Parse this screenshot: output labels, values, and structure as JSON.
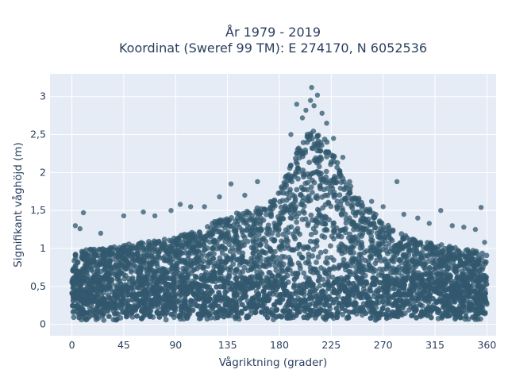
{
  "chart_data": {
    "type": "scatter",
    "title": {
      "line1": "År 1979 - 2019",
      "line2": "Koordinat (Sweref 99 TM): E 274170, N 6052536"
    },
    "xlabel": "Vågriktning (grader)",
    "ylabel": "Signifikant våghöjd (m)",
    "xlim": [
      -19,
      368
    ],
    "ylim": [
      -0.15,
      3.3
    ],
    "xticks": [
      0,
      45,
      90,
      135,
      180,
      225,
      270,
      315,
      360
    ],
    "xtick_labels": [
      "0",
      "45",
      "90",
      "135",
      "180",
      "225",
      "270",
      "315",
      "360"
    ],
    "yticks": [
      0,
      0.5,
      1,
      1.5,
      2,
      2.5,
      3
    ],
    "ytick_labels": [
      "0",
      "0,5",
      "1",
      "1,5",
      "2",
      "2,5",
      "3"
    ],
    "grid": true,
    "marker_color": "#32586e",
    "background_color": "#e5ecf6",
    "upper_envelope": {
      "x": [
        0,
        20,
        45,
        70,
        90,
        110,
        130,
        150,
        165,
        180,
        190,
        200,
        210,
        220,
        230,
        240,
        250,
        260,
        270,
        285,
        300,
        320,
        340,
        360
      ],
      "y": [
        0.95,
        1.0,
        1.05,
        1.1,
        1.15,
        1.25,
        1.4,
        1.5,
        1.55,
        1.75,
        2.1,
        2.45,
        2.6,
        2.45,
        2.15,
        1.9,
        1.65,
        1.5,
        1.35,
        1.2,
        1.1,
        1.05,
        1.0,
        0.95
      ]
    },
    "outlier_points": [
      {
        "x": 208,
        "y": 3.12
      },
      {
        "x": 213,
        "y": 3.02
      },
      {
        "x": 207,
        "y": 2.95
      },
      {
        "x": 195,
        "y": 2.9
      },
      {
        "x": 210,
        "y": 2.88
      },
      {
        "x": 203,
        "y": 2.82
      },
      {
        "x": 217,
        "y": 2.78
      },
      {
        "x": 200,
        "y": 2.72
      },
      {
        "x": 221,
        "y": 2.65
      },
      {
        "x": 190,
        "y": 2.5
      },
      {
        "x": 227,
        "y": 2.45
      },
      {
        "x": 235,
        "y": 2.2
      },
      {
        "x": 282,
        "y": 1.88
      },
      {
        "x": 161,
        "y": 1.88
      },
      {
        "x": 138,
        "y": 1.85
      },
      {
        "x": 355,
        "y": 1.54
      },
      {
        "x": 320,
        "y": 1.5
      },
      {
        "x": 10,
        "y": 1.47
      },
      {
        "x": 3,
        "y": 1.3
      },
      {
        "x": 7,
        "y": 1.26
      },
      {
        "x": 25,
        "y": 1.2
      },
      {
        "x": 45,
        "y": 1.43
      },
      {
        "x": 62,
        "y": 1.48
      },
      {
        "x": 72,
        "y": 1.43
      },
      {
        "x": 86,
        "y": 1.5
      },
      {
        "x": 94,
        "y": 1.58
      },
      {
        "x": 103,
        "y": 1.55
      },
      {
        "x": 115,
        "y": 1.55
      },
      {
        "x": 128,
        "y": 1.68
      },
      {
        "x": 270,
        "y": 1.55
      },
      {
        "x": 288,
        "y": 1.45
      },
      {
        "x": 300,
        "y": 1.4
      },
      {
        "x": 310,
        "y": 1.33
      },
      {
        "x": 330,
        "y": 1.3
      },
      {
        "x": 340,
        "y": 1.28
      },
      {
        "x": 350,
        "y": 1.25
      },
      {
        "x": 358,
        "y": 1.08
      },
      {
        "x": 260,
        "y": 1.62
      },
      {
        "x": 150,
        "y": 1.7
      }
    ],
    "density_note_point_count": 0
  }
}
